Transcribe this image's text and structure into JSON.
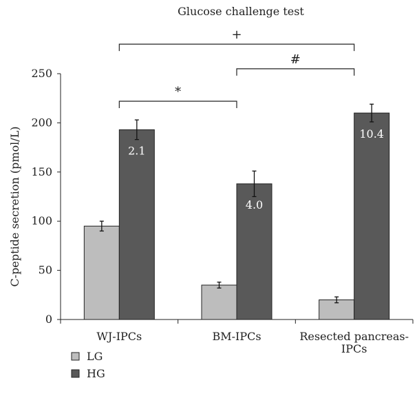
{
  "chart_data": {
    "type": "bar",
    "title": "Glucose challenge test",
    "ylabel": "C-peptide secretion (pmol/L)",
    "xlabel": "",
    "ylim": [
      0,
      250
    ],
    "yticks": [
      0,
      50,
      100,
      150,
      200,
      250
    ],
    "grid": false,
    "legend_position": "bottom-left",
    "categories": [
      {
        "lines": [
          "WJ-IPCs"
        ]
      },
      {
        "lines": [
          "BM-IPCs"
        ]
      },
      {
        "lines": [
          "Resected pancreas-",
          "IPCs"
        ]
      }
    ],
    "series": [
      {
        "name": "LG",
        "color": "#bdbdbd",
        "values": [
          95,
          35,
          20
        ],
        "errors": [
          5,
          3,
          3
        ],
        "labels": [
          null,
          null,
          null
        ]
      },
      {
        "name": "HG",
        "color": "#595959",
        "values": [
          193,
          138,
          210
        ],
        "errors": [
          10,
          13,
          9
        ],
        "labels": [
          "2.1",
          "4.0",
          "10.4"
        ]
      }
    ],
    "significance": [
      {
        "label": "*",
        "from_category": 0,
        "to_category": 1,
        "y": 222
      },
      {
        "label": "#",
        "from_category": 1,
        "to_category": 2,
        "y": 255
      },
      {
        "label": "+",
        "from_category": 0,
        "to_category": 2,
        "y": 280
      }
    ]
  }
}
